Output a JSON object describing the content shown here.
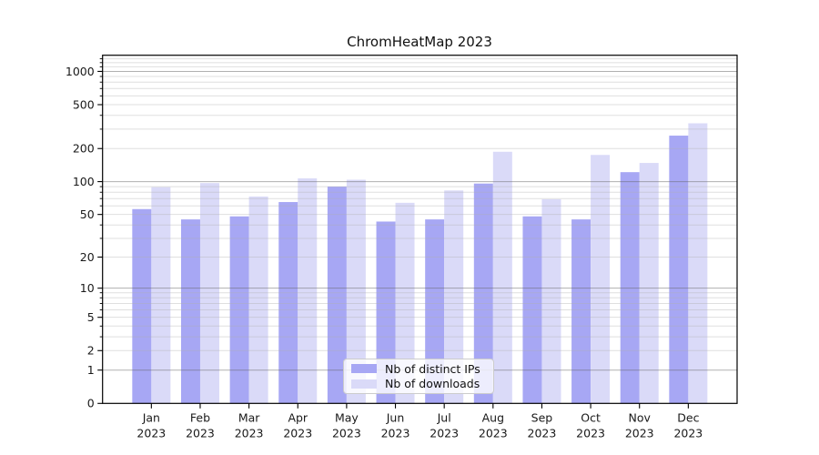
{
  "title": "ChromHeatMap 2023",
  "chart_data": {
    "type": "bar",
    "title": "ChromHeatMap 2023",
    "categories": [
      "Jan",
      "Feb",
      "Mar",
      "Apr",
      "May",
      "Jun",
      "Jul",
      "Aug",
      "Sep",
      "Oct",
      "Nov",
      "Dec"
    ],
    "category_year": "2023",
    "series": [
      {
        "name": "Nb of distinct IPs",
        "color": "#a7a7f4",
        "values": [
          56,
          45,
          48,
          65,
          90,
          43,
          45,
          96,
          48,
          45,
          122,
          262
        ]
      },
      {
        "name": "Nb of downloads",
        "color": "#dadaf8",
        "values": [
          89,
          97,
          73,
          107,
          104,
          64,
          83,
          187,
          69,
          175,
          148,
          339
        ]
      }
    ],
    "yscale": "log1p",
    "ylabel": "",
    "xlabel": "",
    "ylim": [
      0,
      1400
    ],
    "y_ticks": [
      0,
      1,
      2,
      5,
      10,
      20,
      50,
      100,
      200,
      500,
      1000
    ],
    "y_major_grid": [
      1,
      10,
      100,
      1000
    ],
    "y_minor_grid": [
      3,
      4,
      6,
      7,
      8,
      9,
      30,
      40,
      60,
      70,
      80,
      90,
      300,
      400,
      600,
      700,
      800,
      900,
      1100,
      1200,
      1300
    ],
    "grid": true,
    "legend_position": "lower center"
  },
  "colors": {
    "grid_major": "rgba(100,100,100,0.5)",
    "grid_minor": "rgba(175,175,175,0.4)",
    "spine": "#000000",
    "text": "#191919"
  }
}
